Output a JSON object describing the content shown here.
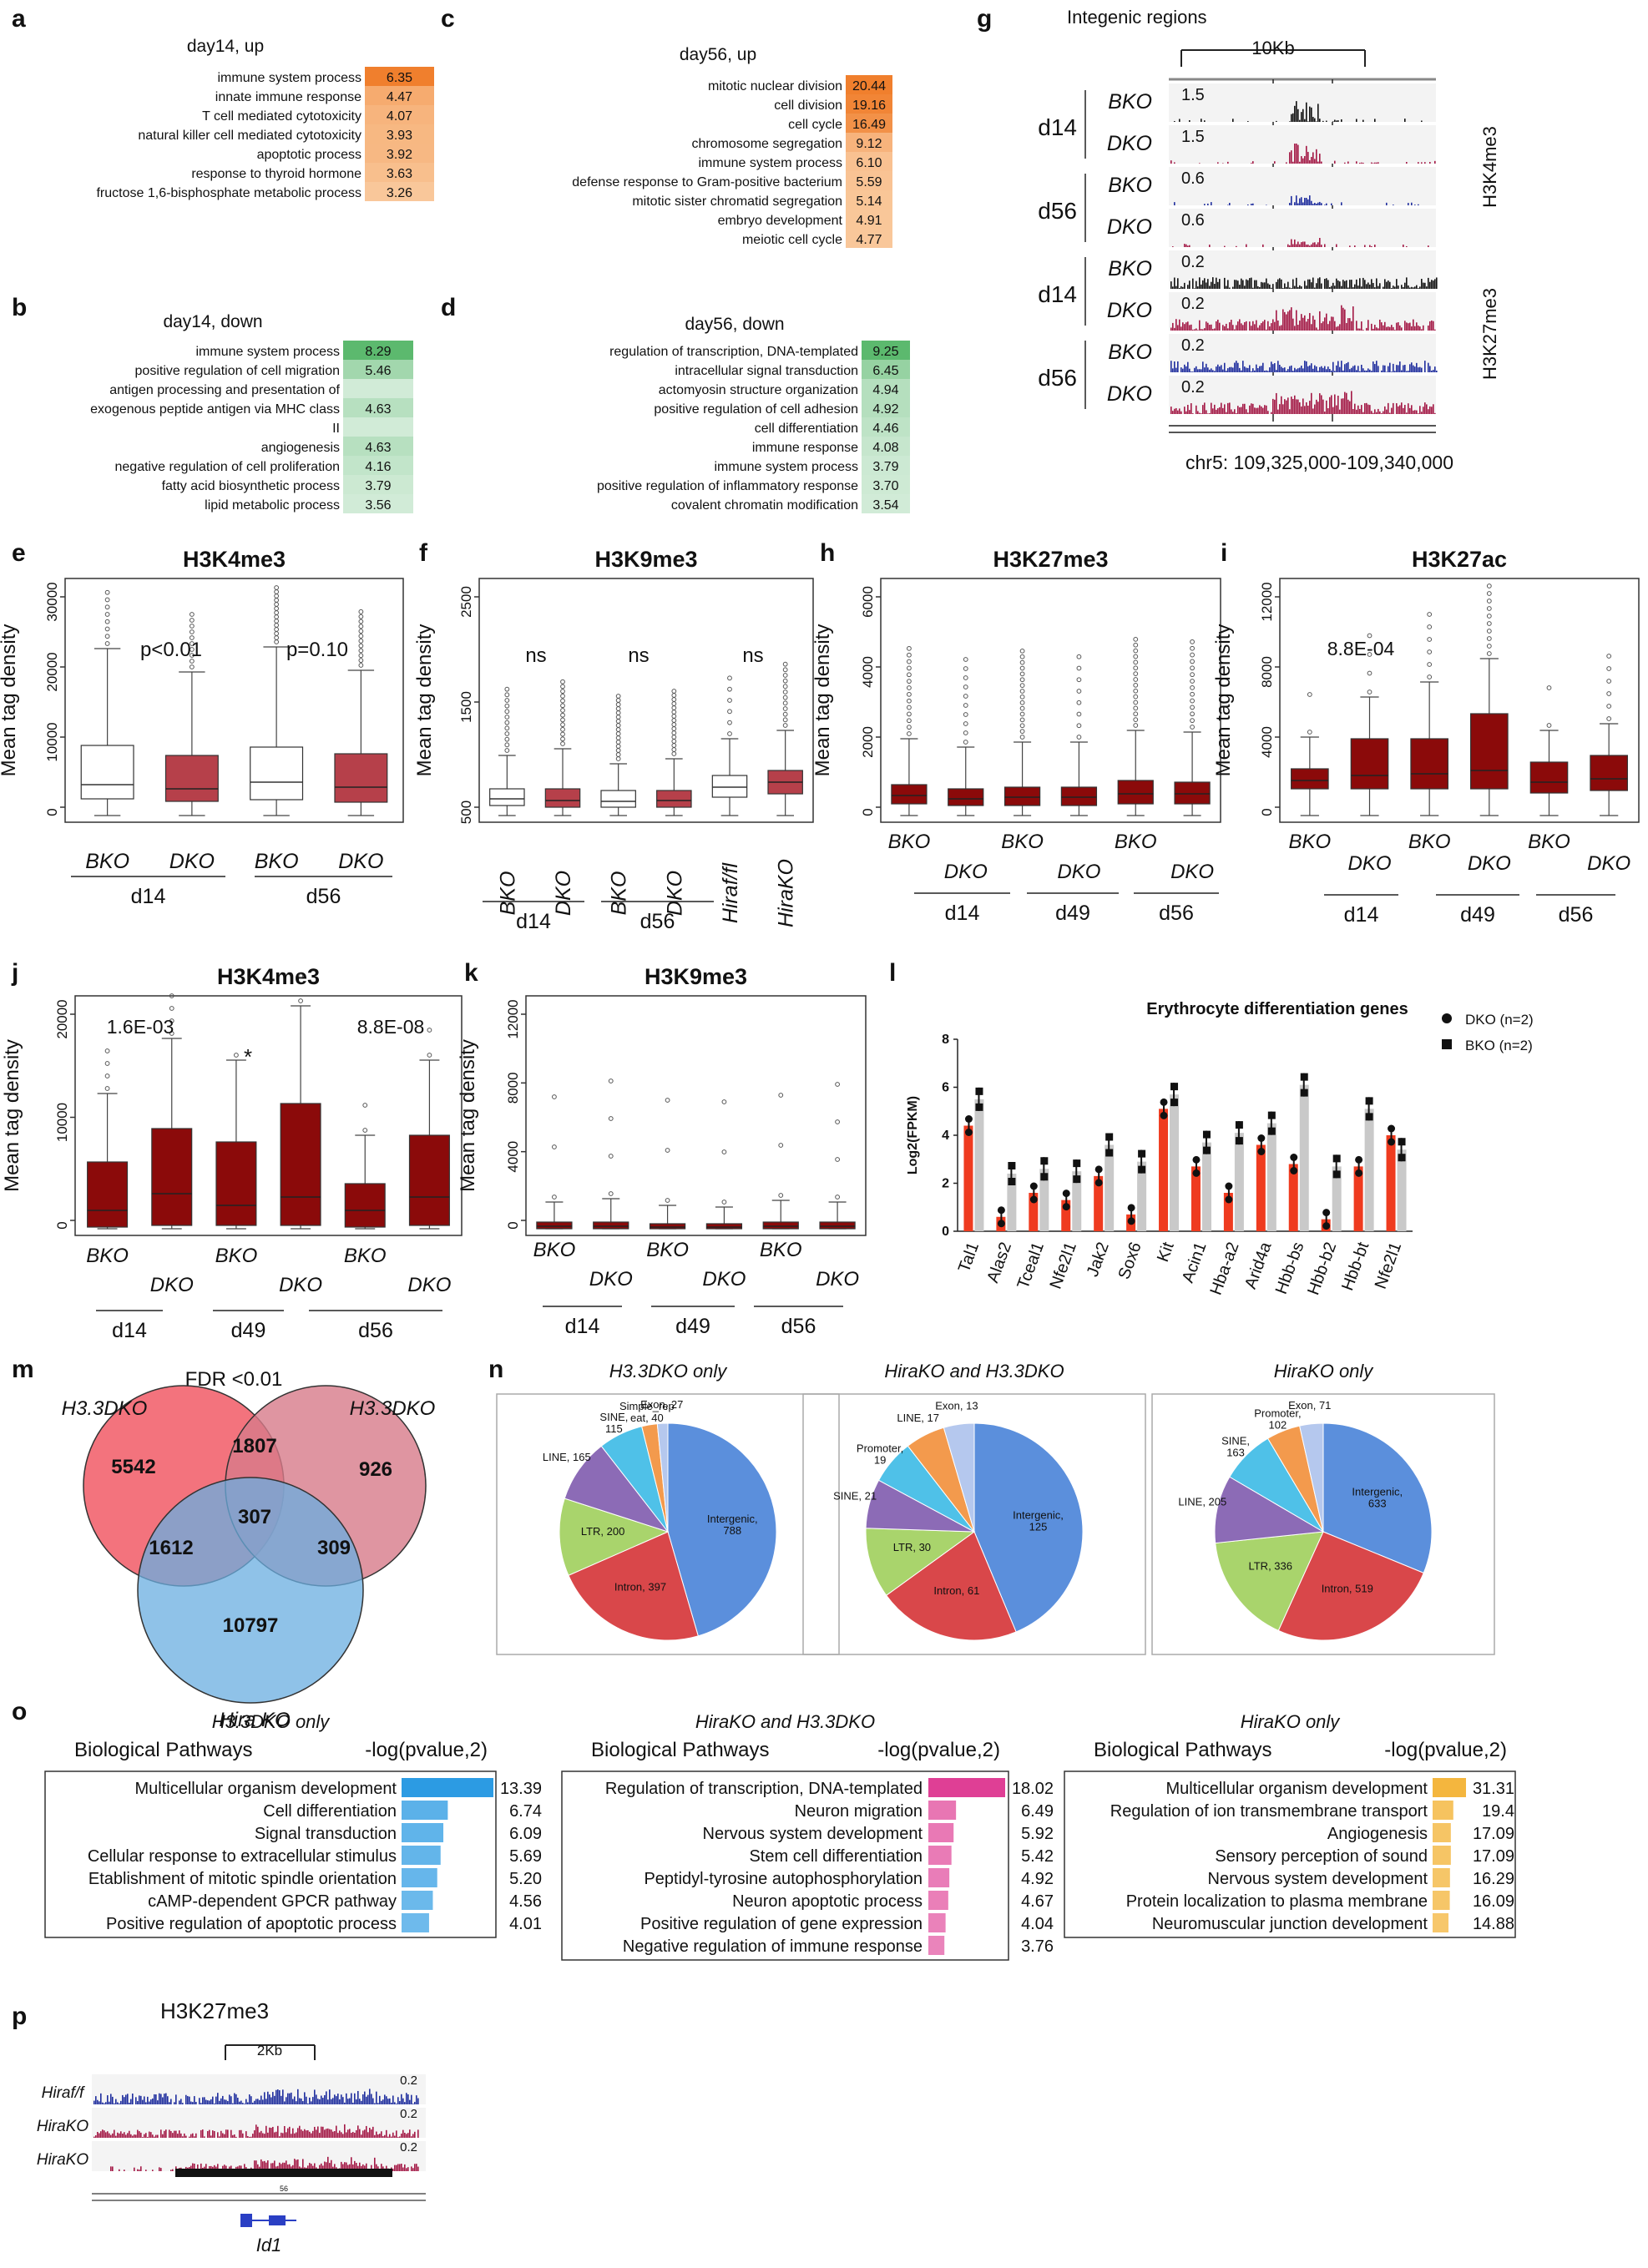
{
  "colors": {
    "orange_dark": "#f07f2d",
    "orange_light": "#fbd4ad",
    "green_dark": "#5cb96e",
    "green_light": "#e6f4ea",
    "box_red": "#8b0a0a",
    "h3k4_green": "#9ac43c",
    "h3k9_salmon": "#f08a76",
    "h3k27_crimson": "#a0102a",
    "h3k27ac_blue": "#2e86c1",
    "track_blue": "#1f2e9e",
    "track_red": "#a31845",
    "track_black": "#111111",
    "venn_red": "#f15b66",
    "venn_pink": "#d77a8a",
    "venn_blue": "#6aaee0",
    "bar_blue": "#2c9be3",
    "bar_pink": "#df3f95",
    "bar_gold": "#f4b63e",
    "bar_red": "#ef3b1f",
    "bar_grey": "#c9c9c9"
  },
  "panels": {
    "a": {
      "label": "a",
      "title": "day14, up",
      "rows": [
        [
          "immune system process",
          "6.35"
        ],
        [
          "innate immune response",
          "4.47"
        ],
        [
          "T cell mediated cytotoxicity",
          "4.07"
        ],
        [
          "natural killer cell mediated cytotoxicity",
          "3.93"
        ],
        [
          "apoptotic process",
          "3.92"
        ],
        [
          "response to thyroid hormone",
          "3.63"
        ],
        [
          "fructose 1,6-bisphosphate metabolic process",
          "3.26"
        ]
      ]
    },
    "b": {
      "label": "b",
      "title": "day14, down",
      "rows": [
        [
          "immune system process",
          "8.29"
        ],
        [
          "positive regulation of cell migration",
          "5.46"
        ],
        [
          "antigen processing and presentation of",
          ""
        ],
        [
          "exogenous peptide antigen via MHC class",
          "4.63"
        ],
        [
          "II",
          ""
        ],
        [
          "angiogenesis",
          "4.63"
        ],
        [
          "negative regulation of cell proliferation",
          "4.16"
        ],
        [
          "fatty acid biosynthetic process",
          "3.79"
        ],
        [
          "lipid metabolic process",
          "3.56"
        ]
      ]
    },
    "c": {
      "label": "c",
      "title": "day56, up",
      "rows": [
        [
          "mitotic nuclear division",
          "20.44"
        ],
        [
          "cell division",
          "19.16"
        ],
        [
          "cell cycle",
          "16.49"
        ],
        [
          "chromosome segregation",
          "9.12"
        ],
        [
          "immune system process",
          "6.10"
        ],
        [
          "defense response to Gram-positive bacterium",
          "5.59"
        ],
        [
          "mitotic sister chromatid segregation",
          "5.14"
        ],
        [
          "embryo development",
          "4.91"
        ],
        [
          "meiotic cell cycle",
          "4.77"
        ]
      ]
    },
    "d": {
      "label": "d",
      "title": "day56, down",
      "rows": [
        [
          "regulation of transcription, DNA-templated",
          "9.25"
        ],
        [
          "intracellular signal transduction",
          "6.45"
        ],
        [
          "actomyosin structure organization",
          "4.94"
        ],
        [
          "positive regulation of cell adhesion",
          "4.92"
        ],
        [
          "cell differentiation",
          "4.46"
        ],
        [
          "immune response",
          "4.08"
        ],
        [
          "immune system process",
          "3.79"
        ],
        [
          "positive regulation of inflammatory response",
          "3.70"
        ],
        [
          "covalent chromatin modification",
          "3.54"
        ]
      ]
    },
    "g": {
      "label": "g",
      "title": "Integenic regions",
      "scale": "10Kb",
      "coords": "chr5: 109,325,000-109,340,000",
      "marks": [
        "H3K4me3",
        "H3K27me3"
      ],
      "days": [
        "d14",
        "d56",
        "d14",
        "d56"
      ],
      "tracks": [
        {
          "name": "BKO",
          "scale": "1.5"
        },
        {
          "name": "DKO",
          "scale": "1.5"
        },
        {
          "name": "BKO",
          "scale": "0.6"
        },
        {
          "name": "DKO",
          "scale": "0.6"
        },
        {
          "name": "BKO",
          "scale": "0.2"
        },
        {
          "name": "DKO",
          "scale": "0.2"
        },
        {
          "name": "BKO",
          "scale": "0.2"
        },
        {
          "name": "DKO",
          "scale": "0.2"
        }
      ]
    },
    "e": {
      "label": "e",
      "title": "H3K4me3",
      "ylabel": "Mean tag density",
      "yticks": [
        "0",
        "10000",
        "20000",
        "30000"
      ],
      "xlabels": [
        "BKO",
        "DKO",
        "BKO",
        "DKO"
      ],
      "groups": [
        "d14",
        "d56"
      ],
      "pvals": [
        "p<0.01",
        "p=0.10"
      ]
    },
    "f": {
      "label": "f",
      "title": "H3K9me3",
      "ylabel": "Mean tag density",
      "yticks": [
        "500",
        "1500",
        "2500"
      ],
      "xlabels": [
        "BKO",
        "DKO",
        "BKO",
        "DKO",
        "Hiraf/fl",
        "HiraKO"
      ],
      "groups": [
        "d14",
        "d56"
      ],
      "ns": [
        "ns",
        "ns",
        "ns"
      ]
    },
    "h": {
      "label": "h",
      "title": "H3K27me3",
      "ylabel": "Mean tag density",
      "yticks": [
        "0",
        "2000",
        "4000",
        "6000"
      ],
      "xlabels": [
        "BKO",
        "DKO",
        "BKO",
        "DKO",
        "BKO",
        "DKO"
      ],
      "groups": [
        "d14",
        "d49",
        "d56"
      ]
    },
    "i": {
      "label": "i",
      "title": "H3K27ac",
      "ylabel": "Mean tag density",
      "yticks": [
        "0",
        "4000",
        "8000",
        "12000"
      ],
      "xlabels": [
        "BKO",
        "DKO",
        "BKO",
        "DKO",
        "BKO",
        "DKO"
      ],
      "groups": [
        "d14",
        "d49",
        "d56"
      ],
      "pval": "8.8E-04"
    },
    "j": {
      "label": "j",
      "title": "H3K4me3",
      "ylabel": "Mean tag density",
      "yticks": [
        "0",
        "10000",
        "20000"
      ],
      "xlabels": [
        "BKO",
        "DKO",
        "BKO",
        "DKO",
        "BKO",
        "DKO"
      ],
      "groups": [
        "d14",
        "d49",
        "d56"
      ],
      "pvals": [
        "1.6E-03",
        "*",
        "8.8E-08"
      ]
    },
    "k": {
      "label": "k",
      "title": "H3K9me3",
      "ylabel": "Mean tag density",
      "yticks": [
        "0",
        "4000",
        "8000",
        "12000"
      ],
      "xlabels": [
        "BKO",
        "DKO",
        "BKO",
        "DKO",
        "BKO",
        "DKO"
      ],
      "groups": [
        "d14",
        "d49",
        "d56"
      ]
    },
    "m": {
      "label": "m",
      "title": "FDR <0.01",
      "sets": [
        "H3.3DKO",
        "H3.3DKO",
        "Hira KO"
      ],
      "counts": [
        "5542",
        "1807",
        "926",
        "307",
        "1612",
        "309",
        "10797"
      ]
    },
    "n": {
      "label": "n",
      "titles": [
        "H3.3DKO only",
        "HiraKO and H3.3DKO",
        "HiraKO only"
      ]
    },
    "o": {
      "label": "o",
      "titles": [
        "H3.3DKO only",
        "HiraKO and H3.3DKO",
        "HiraKO only"
      ],
      "header_left": "Biological Pathways",
      "header_right": "-log(pvalue,2)",
      "lists": [
        [
          [
            "Multicellular organism development",
            "13.39"
          ],
          [
            "Cell differentiation",
            "6.74"
          ],
          [
            "Signal transduction",
            "6.09"
          ],
          [
            "Cellular response to extracellular stimulus",
            "5.69"
          ],
          [
            "Etablishment of mitotic spindle orientation",
            "5.20"
          ],
          [
            "cAMP-dependent GPCR pathway",
            "4.56"
          ],
          [
            "Positive regulation of apoptotic process",
            "4.01"
          ]
        ],
        [
          [
            "Regulation of transcription, DNA-templated",
            "18.02"
          ],
          [
            "Neuron migration",
            "6.49"
          ],
          [
            "Nervous system development",
            "5.92"
          ],
          [
            "Stem cell differentiation",
            "5.42"
          ],
          [
            "Peptidyl-tyrosine autophosphorylation",
            "4.92"
          ],
          [
            "Neuron apoptotic process",
            "4.67"
          ],
          [
            "Positive regulation of gene expression",
            "4.04"
          ],
          [
            "Negative regulation of immune response",
            "3.76"
          ]
        ],
        [
          [
            "Multicellular organism development",
            "31.31"
          ],
          [
            "Regulation of ion transmembrane transport",
            "19.4"
          ],
          [
            "Angiogenesis",
            "17.09"
          ],
          [
            "Sensory perception of sound",
            "17.09"
          ],
          [
            "Nervous system development",
            "16.29"
          ],
          [
            "Protein localization to plasma membrane",
            "16.09"
          ],
          [
            "Neuromuscular junction development",
            "14.88"
          ]
        ]
      ]
    },
    "p": {
      "label": "p",
      "title": "H3K27me3",
      "scale": "2Kb",
      "tracks": [
        "Hiraf/f",
        "HiraKO",
        "HiraKO"
      ],
      "track_scale": "0.2",
      "gene": "Id1",
      "mini": "56"
    },
    "l": {
      "label": "l"
    }
  },
  "chart_data": [
    {
      "type": "bar",
      "panel": "l",
      "title": "Erythrocyte differentiation genes",
      "ylabel": "Log2(FPKM)",
      "ylim": [
        0,
        8
      ],
      "yticks": [
        "0",
        "2",
        "4",
        "6",
        "8"
      ],
      "categories": [
        "Tal1",
        "Alas2",
        "Tceal1",
        "Nfe2l1",
        "Jak2",
        "Sox6",
        "Kit",
        "Acin1",
        "Hba-a2",
        "Arid4a",
        "Hbb-bs",
        "Hbb-b2",
        "Hbb-bt",
        "Nfe2l1"
      ],
      "series": [
        {
          "name": "DKO (n=2)",
          "values": [
            4.4,
            0.6,
            1.6,
            1.3,
            2.3,
            0.7,
            5.1,
            2.7,
            1.6,
            3.6,
            2.8,
            0.5,
            2.7,
            4.0
          ]
        },
        {
          "name": "BKO (n=2)",
          "values": [
            5.5,
            2.4,
            2.6,
            2.5,
            3.6,
            2.9,
            5.7,
            3.7,
            4.1,
            4.5,
            6.1,
            2.7,
            5.1,
            3.4
          ]
        }
      ],
      "legend": [
        "DKO (n=2)",
        "BKO (n=2)"
      ]
    },
    {
      "type": "pie",
      "panel": "n",
      "title": "H3.3DKO only",
      "labels": [
        "Intergenic,\n788",
        "Intron, 397",
        "LTR, 200",
        "LINE, 165",
        "SINE,\n115",
        "Simple_rep\neat, 40",
        "Exon, 27"
      ],
      "values": [
        788,
        397,
        200,
        165,
        115,
        40,
        27
      ]
    },
    {
      "type": "pie",
      "panel": "n",
      "title": "HiraKO and H3.3DKO",
      "labels": [
        "Intergenic,\n125",
        "Intron, 61",
        "LTR, 30",
        "SINE, 21",
        "Promoter,\n19",
        "LINE, 17",
        "Exon, 13"
      ],
      "values": [
        125,
        61,
        30,
        21,
        19,
        17,
        13
      ]
    },
    {
      "type": "pie",
      "panel": "n",
      "title": "HiraKO only",
      "labels": [
        "Intergenic,\n633",
        "Intron, 519",
        "LTR, 336",
        "LINE, 205",
        "SINE,\n163",
        "Promoter,\n102",
        "Exon, 71"
      ],
      "values": [
        633,
        519,
        336,
        205,
        163,
        102,
        71
      ]
    }
  ]
}
